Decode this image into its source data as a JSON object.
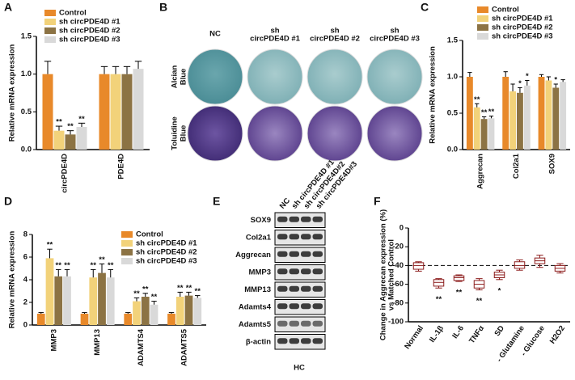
{
  "chart_data": [
    {
      "type": "bar",
      "panel": "A",
      "ylabel": "Relative mRNA expression",
      "categories": [
        "circPDE4D",
        "PDE4D"
      ],
      "ylim": [
        0,
        1.5
      ],
      "yticks": [
        {
          "value": 0,
          "label": "0.0"
        },
        0.5,
        {
          "value": 1,
          "label": "1.0"
        },
        1.5
      ],
      "legend": "upper left",
      "series": [
        {
          "name": "Control",
          "color": "#e8892a",
          "values": [
            1.0,
            1.0
          ],
          "errors": [
            0.17,
            0.1
          ],
          "sig": [
            null,
            null
          ]
        },
        {
          "name": "sh circPDE4D #1",
          "color": "#f2d27a",
          "values": [
            0.25,
            1.0
          ],
          "errors": [
            0.06,
            0.1
          ],
          "sig": [
            "**",
            null
          ]
        },
        {
          "name": "sh circPDE4D #2",
          "color": "#8c7344",
          "values": [
            0.2,
            1.0
          ],
          "errors": [
            0.05,
            0.1
          ],
          "sig": [
            "**",
            null
          ]
        },
        {
          "name": "sh circPDE4D #3",
          "color": "#d9d9d9",
          "values": [
            0.3,
            1.07
          ],
          "errors": [
            0.05,
            0.1
          ],
          "sig": [
            "**",
            null
          ]
        }
      ]
    },
    {
      "type": "bar",
      "panel": "C",
      "ylabel": "Relative mRNA expression",
      "categories": [
        "Aggrecan",
        "Col2a1",
        "SOX9"
      ],
      "ylim": [
        0,
        1.5
      ],
      "yticks": [
        {
          "value": 0,
          "label": "0.0"
        },
        0.5,
        {
          "value": 1,
          "label": "1.0"
        },
        1.5
      ],
      "legend": "upper right",
      "series": [
        {
          "name": "Control",
          "color": "#e8892a",
          "values": [
            1.0,
            1.0,
            1.0
          ],
          "errors": [
            0.06,
            0.07,
            0.03
          ],
          "sig": [
            null,
            null,
            null
          ]
        },
        {
          "name": "sh circPDE4D #1",
          "color": "#f2d27a",
          "values": [
            0.58,
            0.8,
            0.95
          ],
          "errors": [
            0.05,
            0.1,
            0.05
          ],
          "sig": [
            "**",
            null,
            null
          ]
        },
        {
          "name": "sh circPDE4D #2",
          "color": "#8c7344",
          "values": [
            0.42,
            0.78,
            0.85
          ],
          "errors": [
            0.03,
            0.07,
            0.05
          ],
          "sig": [
            "**",
            "*",
            "*"
          ]
        },
        {
          "name": "sh circPDE4D #3",
          "color": "#d9d9d9",
          "values": [
            0.43,
            0.88,
            0.93
          ],
          "errors": [
            0.03,
            0.07,
            0.03
          ],
          "sig": [
            "**",
            "*",
            null
          ]
        }
      ]
    },
    {
      "type": "bar",
      "panel": "D",
      "ylabel": "Relative mRNA expression",
      "categories": [
        "MMP3",
        "MMP13",
        "ADAMTS4",
        "ADAMTS5"
      ],
      "ylim": [
        0,
        8
      ],
      "yticks": [
        0,
        2,
        4,
        6,
        8
      ],
      "legend": "upper right",
      "series": [
        {
          "name": "Control",
          "color": "#e8892a",
          "values": [
            1,
            1,
            1,
            1
          ],
          "errors": [
            0.1,
            0.1,
            0.1,
            0.1
          ],
          "sig": [
            null,
            null,
            null,
            null
          ]
        },
        {
          "name": "sh circPDE4D #1",
          "color": "#f2d27a",
          "values": [
            5.9,
            4.2,
            2.1,
            2.5
          ],
          "errors": [
            0.8,
            0.7,
            0.3,
            0.4
          ],
          "sig": [
            "**",
            "**",
            "**",
            "**"
          ]
        },
        {
          "name": "sh circPDE4D #2",
          "color": "#8c7344",
          "values": [
            4.3,
            4.6,
            2.5,
            2.6
          ],
          "errors": [
            0.6,
            0.8,
            0.3,
            0.3
          ],
          "sig": [
            "**",
            "**",
            "**",
            "**"
          ]
        },
        {
          "name": "sh circPDE4D #3",
          "color": "#d9d9d9",
          "values": [
            4.3,
            4.2,
            1.8,
            2.4
          ],
          "errors": [
            0.6,
            0.7,
            0.3,
            0.2
          ],
          "sig": [
            "**",
            "**",
            "**",
            "**"
          ]
        }
      ]
    },
    {
      "type": "box",
      "panel": "F",
      "ylabel": [
        "Change in Aggrecan expression (%)",
        "vs Matched Control"
      ],
      "categories": [
        "Normal",
        "IL-1β",
        "IL-6",
        "TNFα",
        "SD",
        "- Glutamine",
        "- Glucose",
        "H2O2"
      ],
      "ylim": [
        -100,
        0
      ],
      "yticks": [
        -100,
        -80,
        -60,
        -40,
        -20,
        0
      ],
      "color": "#8b1a1a",
      "ref_line": -40,
      "boxes": [
        {
          "min": -46,
          "q1": -44,
          "median": -40,
          "q3": -37,
          "max": -36
        },
        {
          "min": -64,
          "q1": -62,
          "median": -58,
          "q3": -55,
          "max": -54
        },
        {
          "min": -57,
          "q1": -56,
          "median": -53,
          "q3": -51,
          "max": -50
        },
        {
          "min": -66,
          "q1": -64,
          "median": -60,
          "q3": -56,
          "max": -54
        },
        {
          "min": -55,
          "q1": -53,
          "median": -50,
          "q3": -47,
          "max": -45
        },
        {
          "min": -45,
          "q1": -43,
          "median": -40,
          "q3": -36,
          "max": -34
        },
        {
          "min": -42,
          "q1": -38,
          "median": -35,
          "q3": -32,
          "max": -29
        },
        {
          "min": -48,
          "q1": -46,
          "median": -43,
          "q3": -40,
          "max": -38
        }
      ],
      "sig": [
        null,
        "**",
        "**",
        "**",
        "*",
        null,
        null,
        null
      ]
    }
  ],
  "panel_b": {
    "panel": "B",
    "columns": [
      [
        "NC"
      ],
      [
        "sh",
        "circPDE4D #1"
      ],
      [
        "sh",
        "circPDE4D #2"
      ],
      [
        "sh",
        "circPDE4D #3"
      ]
    ],
    "rows": [
      [
        "Alcian",
        "Blue"
      ],
      [
        "Toluidine",
        "Blue"
      ]
    ]
  },
  "panel_e": {
    "panel": "E",
    "lanes": [
      "NC",
      "sh circPDE4D #1",
      "sh circPDE4D#2",
      "sh circPDE4D#3"
    ],
    "proteins": [
      "SOX9",
      "Col2a1",
      "Aggrecan",
      "MMP3",
      "MMP13",
      "Adamts4",
      "Adamts5",
      "β-actin"
    ],
    "caption": "HC"
  }
}
